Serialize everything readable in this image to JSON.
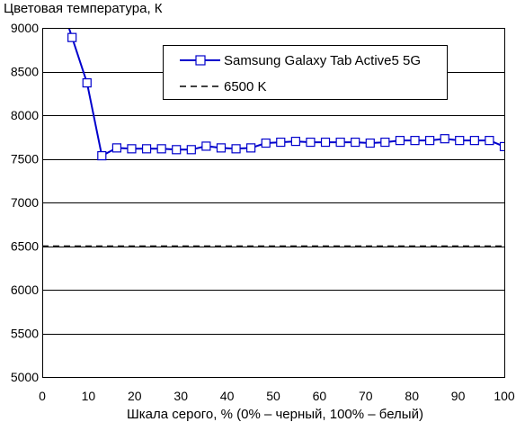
{
  "chart_data": {
    "type": "line",
    "title": "",
    "ylabel": "Цветовая температура, К",
    "xlabel": "Шкала серого, % (0% – черный, 100% – белый)",
    "xlim": [
      0,
      100
    ],
    "ylim": [
      5000,
      9000
    ],
    "xticks": [
      0,
      10,
      20,
      30,
      40,
      50,
      60,
      70,
      80,
      90,
      100
    ],
    "yticks": [
      5000,
      5500,
      6000,
      6500,
      7000,
      7500,
      8000,
      8500,
      9000
    ],
    "grid": "horizontal",
    "legend_position": "top-right",
    "series": [
      {
        "name": "Samsung Galaxy Tab Active5 5G",
        "color": "#0000cc",
        "marker": "square-open",
        "line_continues_above_axis_at_start": true,
        "x": [
          6.45,
          9.68,
          12.9,
          16.13,
          19.35,
          22.58,
          25.81,
          29.03,
          32.26,
          35.48,
          38.71,
          41.94,
          45.16,
          48.39,
          51.61,
          54.84,
          58.06,
          61.29,
          64.52,
          67.74,
          70.97,
          74.19,
          77.42,
          80.65,
          83.87,
          87.1,
          90.32,
          93.55,
          96.77,
          100
        ],
        "y": [
          8890,
          8370,
          7535,
          7625,
          7615,
          7615,
          7615,
          7605,
          7605,
          7645,
          7625,
          7615,
          7625,
          7680,
          7690,
          7700,
          7690,
          7690,
          7690,
          7690,
          7680,
          7690,
          7710,
          7710,
          7710,
          7730,
          7710,
          7710,
          7710,
          7640
        ]
      },
      {
        "name": "6500 K",
        "color": "#000000",
        "style": "dashed",
        "x": [
          0,
          100
        ],
        "y": [
          6500,
          6500
        ]
      }
    ]
  }
}
